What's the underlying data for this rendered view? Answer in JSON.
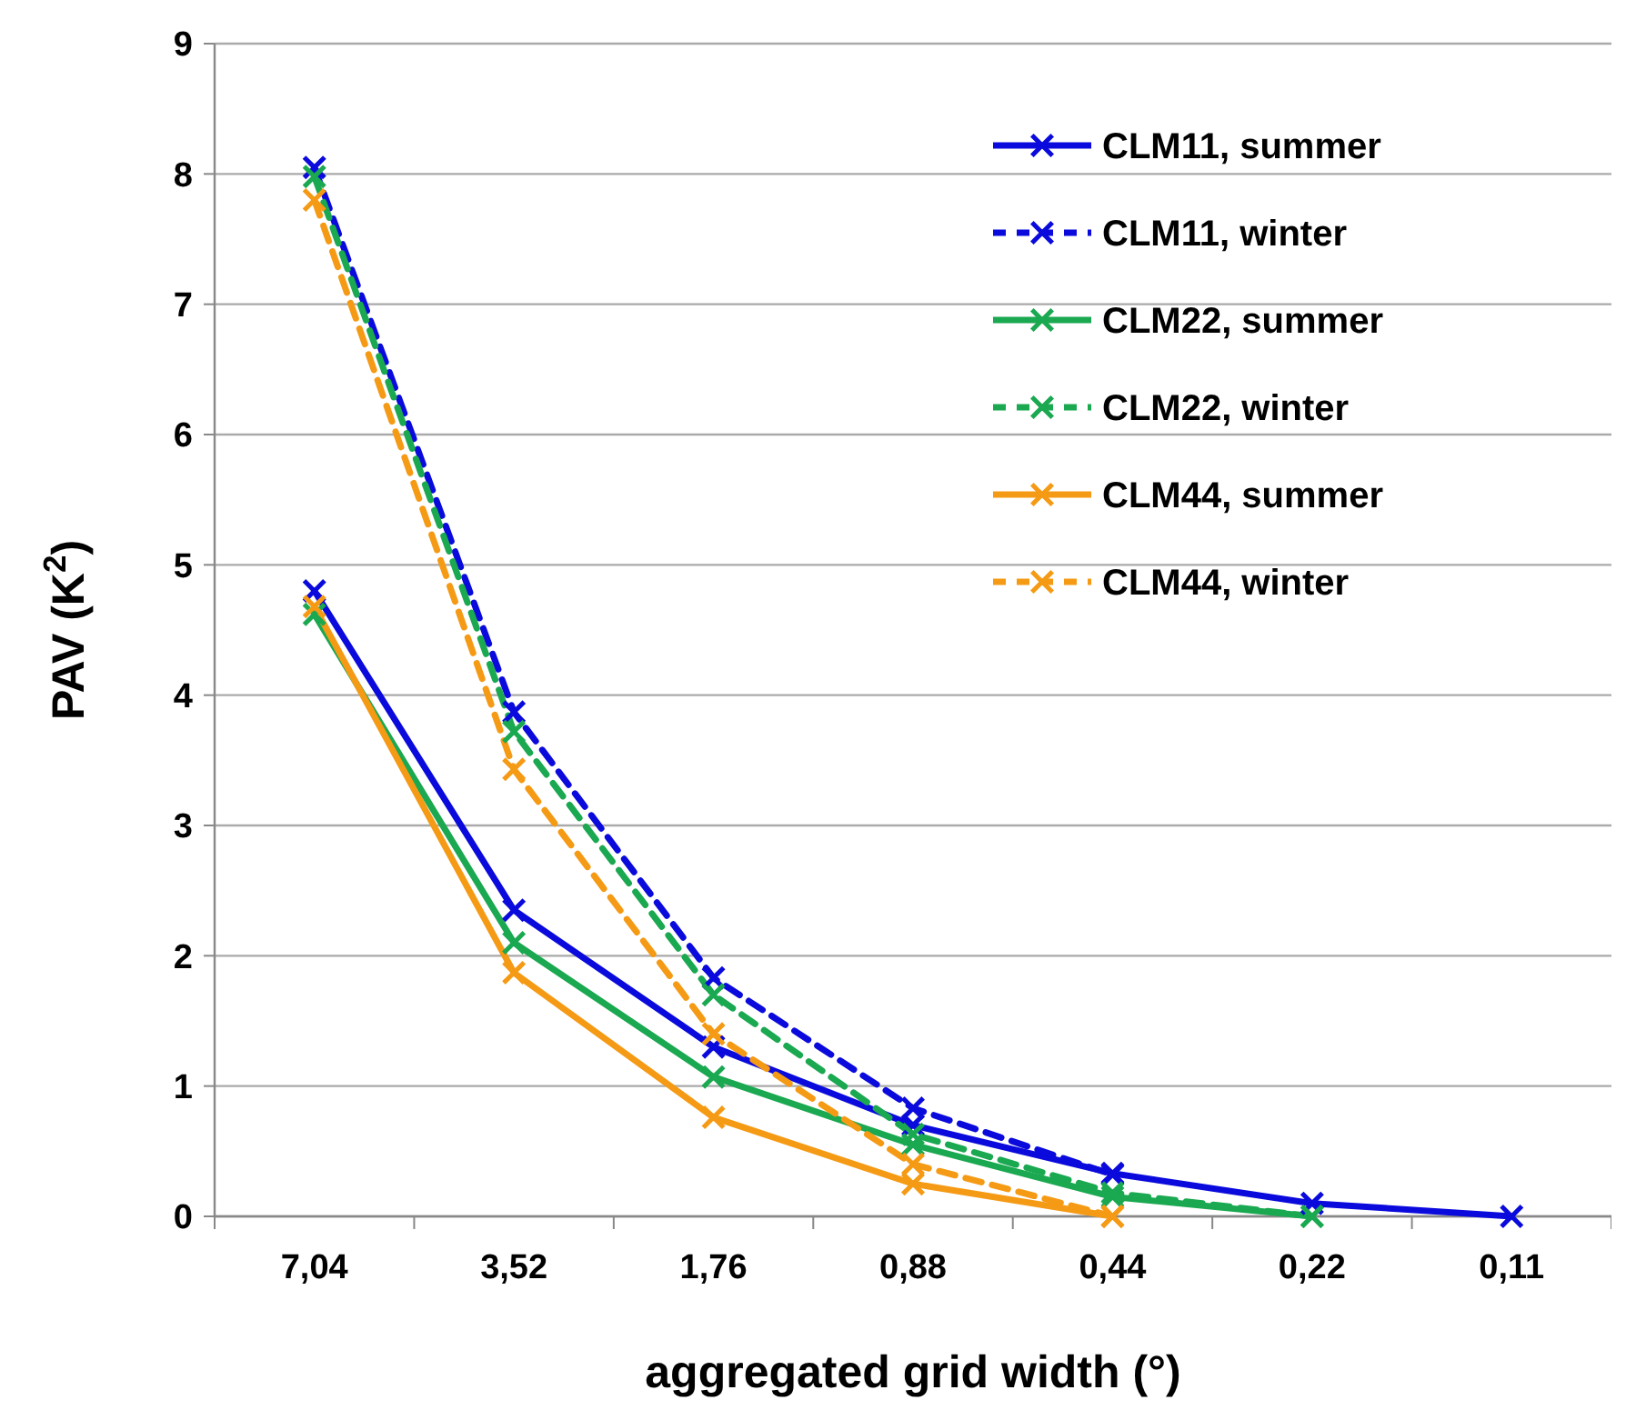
{
  "chart_data": {
    "type": "line",
    "xlabel": "aggregated grid width (°)",
    "ylabel": "PAV (K$^{2}$)",
    "categories": [
      "7,04",
      "3,52",
      "1,76",
      "0,88",
      "0,44",
      "0,22",
      "0,11"
    ],
    "ylim": [
      0,
      9
    ],
    "yticks": [
      0,
      1,
      2,
      3,
      4,
      5,
      6,
      7,
      8,
      9
    ],
    "grid": "y",
    "legend": "top right",
    "marker": "cross",
    "series": [
      {
        "name": "CLM11, summer",
        "color": "#0a0adc",
        "line_style": "solid",
        "values": [
          4.8,
          2.35,
          1.3,
          0.7,
          0.33,
          0.1,
          0
        ]
      },
      {
        "name": "CLM11, winter",
        "color": "#0a0adc",
        "line_style": "dashed",
        "values": [
          8.05,
          3.87,
          1.83,
          0.83,
          0.32,
          null,
          null
        ]
      },
      {
        "name": "CLM22, summer",
        "color": "#1aa850",
        "line_style": "solid",
        "values": [
          4.62,
          2.1,
          1.07,
          0.55,
          0.15,
          0,
          null
        ]
      },
      {
        "name": "CLM22, winter",
        "color": "#1aa850",
        "line_style": "dashed",
        "values": [
          7.98,
          3.72,
          1.7,
          0.63,
          0.18,
          0,
          null
        ]
      },
      {
        "name": "CLM44, summer",
        "color": "#f59a14",
        "line_style": "solid",
        "values": [
          4.68,
          1.87,
          0.76,
          0.25,
          0,
          null,
          null
        ]
      },
      {
        "name": "CLM44, winter",
        "color": "#f59a14",
        "line_style": "dashed",
        "values": [
          7.8,
          3.43,
          1.4,
          0.4,
          0,
          null,
          null
        ]
      }
    ]
  }
}
